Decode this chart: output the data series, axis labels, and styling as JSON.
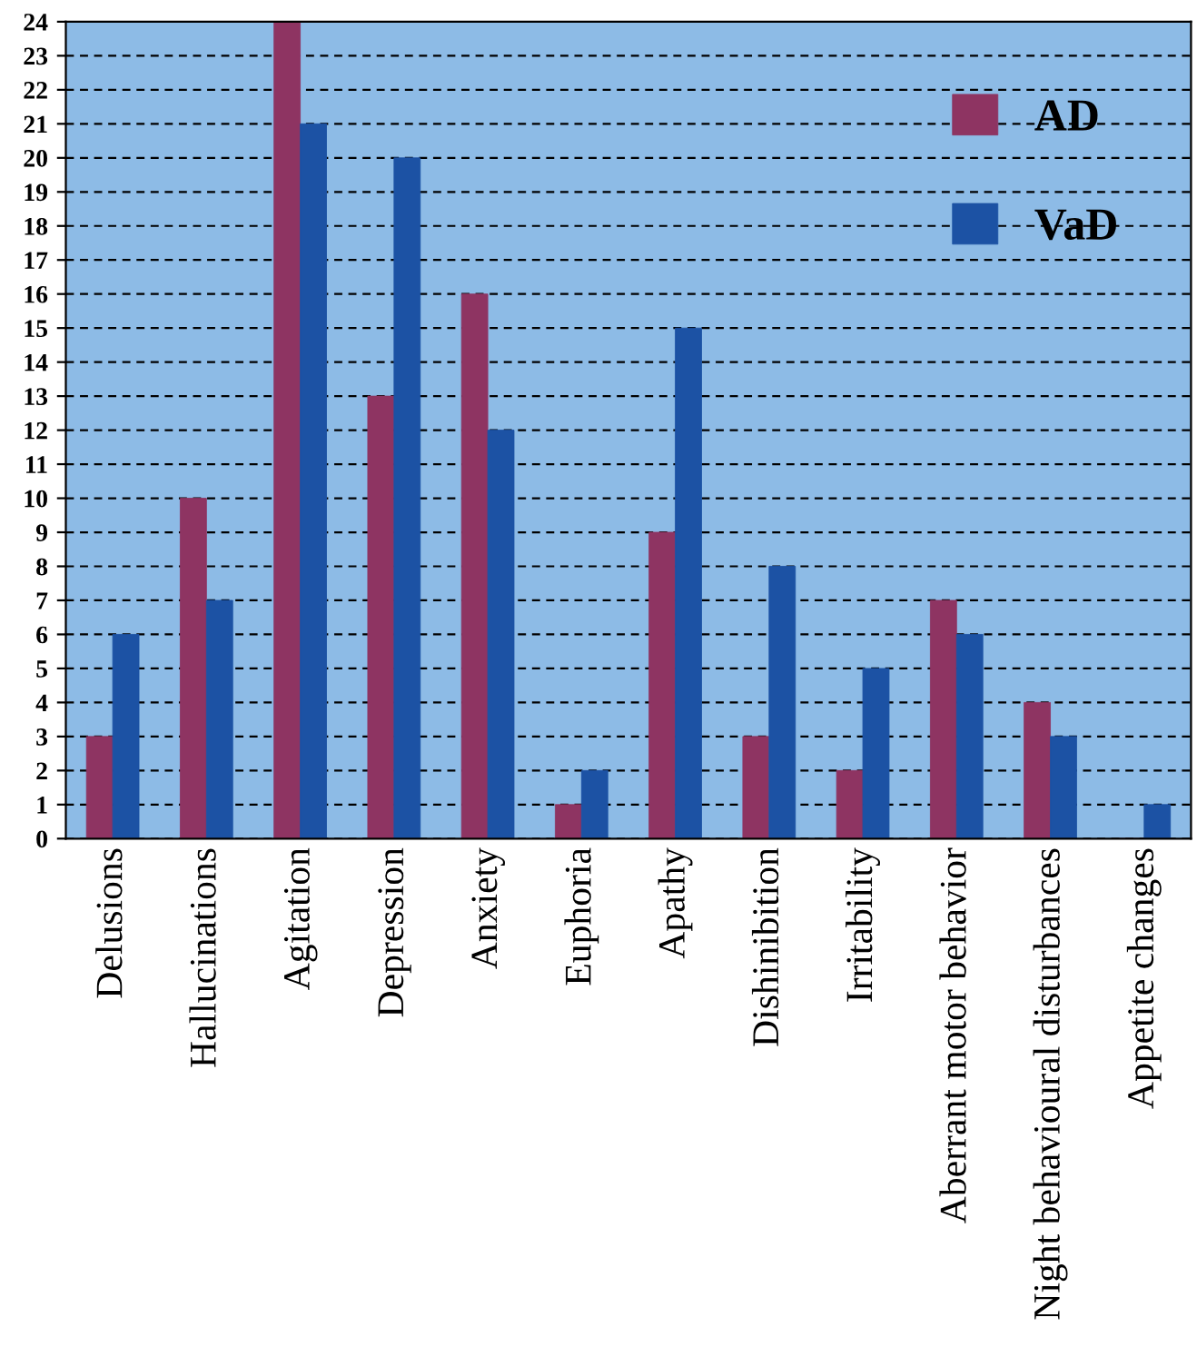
{
  "chart_data": {
    "type": "bar",
    "categories": [
      "Delusions",
      "Hallucinations",
      "Agitation",
      "Depression",
      "Anxiety",
      "Euphoria",
      "Apathy",
      "Dishinibition",
      "Irritability",
      "Aberrant motor behavior",
      "Night behavioural disturbances",
      "Appetite changes"
    ],
    "series": [
      {
        "name": "AD",
        "color": "#8e3462",
        "values": [
          3,
          10,
          24,
          13,
          16,
          1,
          9,
          3,
          2,
          7,
          4,
          0
        ]
      },
      {
        "name": "VaD",
        "color": "#1c52a4",
        "values": [
          6,
          7,
          21,
          20,
          12,
          2,
          15,
          8,
          5,
          6,
          3,
          1
        ]
      }
    ],
    "ylim": [
      0,
      24
    ],
    "yticks": [
      0,
      1,
      2,
      3,
      4,
      5,
      6,
      7,
      8,
      9,
      10,
      11,
      12,
      13,
      14,
      15,
      16,
      17,
      18,
      19,
      20,
      21,
      22,
      23,
      24
    ],
    "grid": "y",
    "legend": "top right"
  }
}
